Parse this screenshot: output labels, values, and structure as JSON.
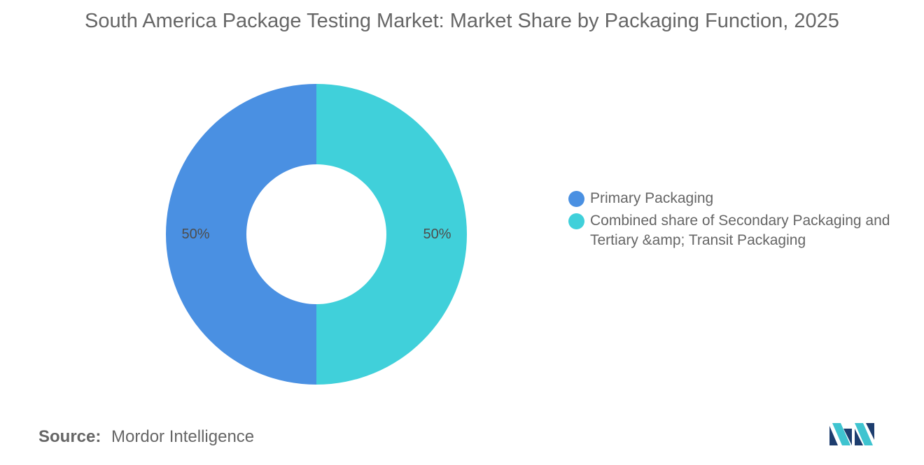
{
  "chart": {
    "title": "South America Package Testing Market: Market Share by Packaging Function, 2025"
  },
  "chart_data": {
    "type": "pie",
    "variant": "donut",
    "title": "South America Package Testing Market: Market Share by Packaging Function, 2025",
    "categories": [
      "Primary Packaging",
      "Combined share of Secondary Packaging and Tertiary &amp; Transit Packaging"
    ],
    "values": [
      50,
      50
    ],
    "data_labels": [
      "50%",
      "50%"
    ],
    "colors": [
      "#4a90e2",
      "#40d0da"
    ],
    "legend_position": "right"
  },
  "legend": {
    "items": [
      {
        "label": "Primary Packaging",
        "color": "#4a90e2"
      },
      {
        "label": "Combined share of Secondary Packaging and Tertiary &amp; Transit Packaging",
        "color": "#40d0da"
      }
    ]
  },
  "source": {
    "label": "Source:",
    "value": "Mordor Intelligence"
  },
  "logo": {
    "icon": "mordor-intelligence-logo-icon",
    "colors": [
      "#1d3d6e",
      "#3fc4d0"
    ]
  }
}
